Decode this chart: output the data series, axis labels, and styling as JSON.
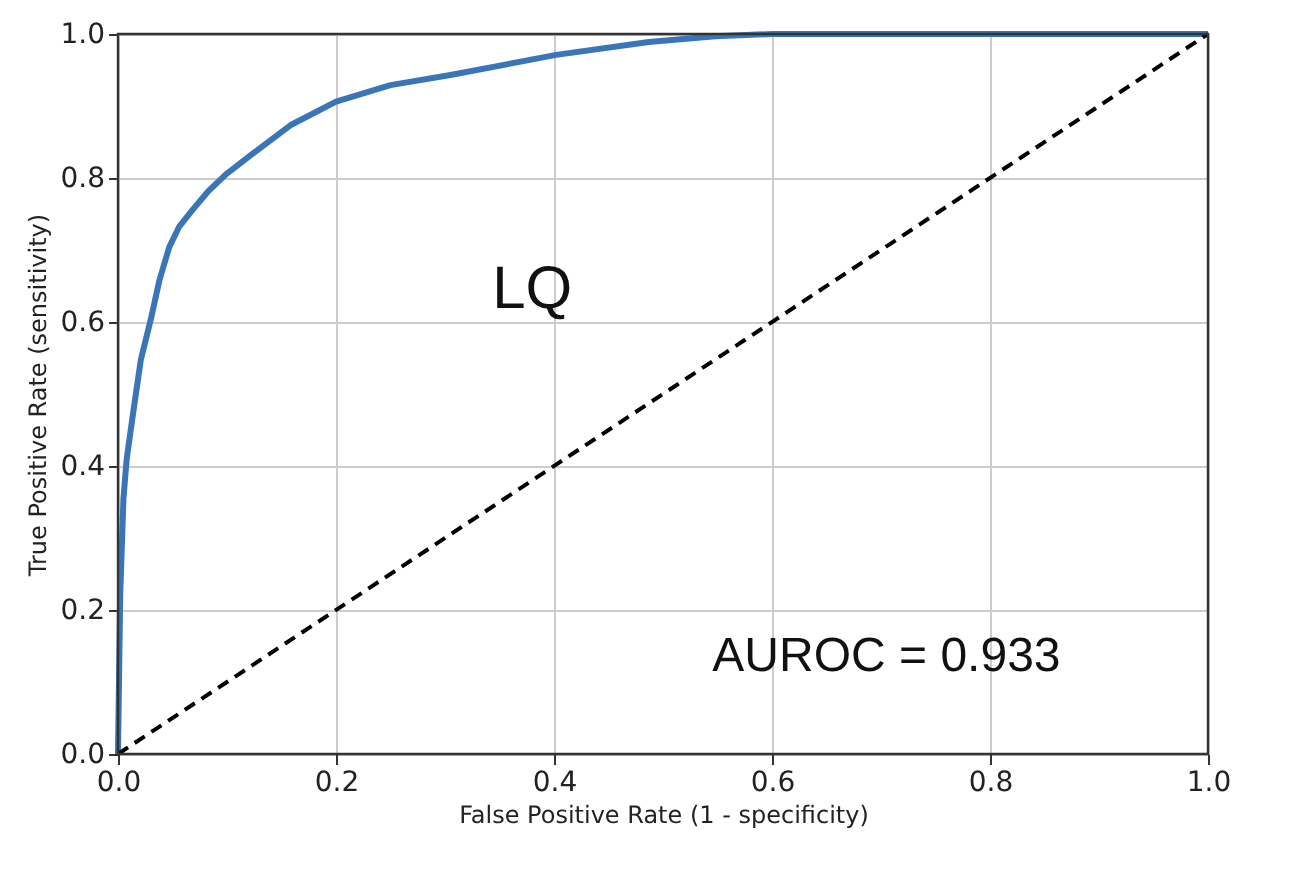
{
  "chart_data": {
    "type": "line",
    "xlabel": "False Positive Rate (1 - specificity)",
    "ylabel": "True Positive Rate (sensitivity)",
    "xlim": [
      0,
      1
    ],
    "ylim": [
      0,
      1
    ],
    "xticks": [
      {
        "value": 0,
        "label": "0.0"
      },
      {
        "value": 0.2,
        "label": "0.2"
      },
      {
        "value": 0.4,
        "label": "0.4"
      },
      {
        "value": 0.6,
        "label": "0.6"
      },
      {
        "value": 0.8,
        "label": "0.8"
      },
      {
        "value": 1,
        "label": "1.0"
      }
    ],
    "yticks": [
      {
        "value": 0,
        "label": "0.0"
      },
      {
        "value": 0.2,
        "label": "0.2"
      },
      {
        "value": 0.4,
        "label": "0.4"
      },
      {
        "value": 0.6,
        "label": "0.6"
      },
      {
        "value": 0.8,
        "label": "0.8"
      },
      {
        "value": 1,
        "label": "1.0"
      }
    ],
    "grid": true,
    "marker": "none",
    "annotations": [
      "LQ",
      "AUROC = 0.933"
    ],
    "series": [
      {
        "color": "#3a75b8",
        "line_style": "solid",
        "x": [
          0,
          0.002,
          0.005,
          0.008,
          0.014,
          0.021,
          0.03,
          0.038,
          0.047,
          0.056,
          0.068,
          0.083,
          0.099,
          0.123,
          0.159,
          0.2,
          0.25,
          0.305,
          0.402,
          0.487,
          0.548,
          0.6,
          0.8,
          1
        ],
        "values": [
          0,
          0.22,
          0.355,
          0.41,
          0.475,
          0.548,
          0.603,
          0.658,
          0.704,
          0.732,
          0.755,
          0.782,
          0.805,
          0.833,
          0.874,
          0.906,
          0.929,
          0.943,
          0.971,
          0.989,
          0.997,
          1,
          1,
          1
        ]
      },
      {
        "color": "#000000",
        "line_style": "dashed",
        "x": [
          0,
          1
        ],
        "values": [
          0,
          1
        ]
      }
    ]
  }
}
